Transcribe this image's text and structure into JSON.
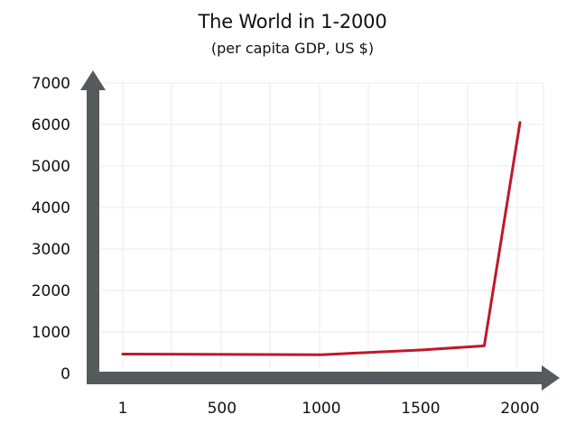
{
  "chart_data": {
    "type": "line",
    "title": "The World in 1-2000",
    "subtitle": "(per capita GDP, US $)",
    "xlabel": "",
    "ylabel": "",
    "x_ticks": [
      1,
      500,
      1000,
      1500,
      2000
    ],
    "y_ticks": [
      0,
      1000,
      2000,
      3000,
      4000,
      5000,
      6000,
      7000
    ],
    "xlim": [
      1,
      2000
    ],
    "ylim": [
      0,
      7000
    ],
    "grid": true,
    "legend": "none",
    "colors": {
      "line": "#c0182a",
      "axis": "#555a5c",
      "grid": "#ebebeb"
    },
    "series": [
      {
        "values": [
          {
            "x": 1,
            "y": 467
          },
          {
            "x": 1000,
            "y": 453
          },
          {
            "x": 1500,
            "y": 566
          },
          {
            "x": 1820,
            "y": 666
          },
          {
            "x": 2000,
            "y": 6049
          }
        ]
      }
    ]
  }
}
